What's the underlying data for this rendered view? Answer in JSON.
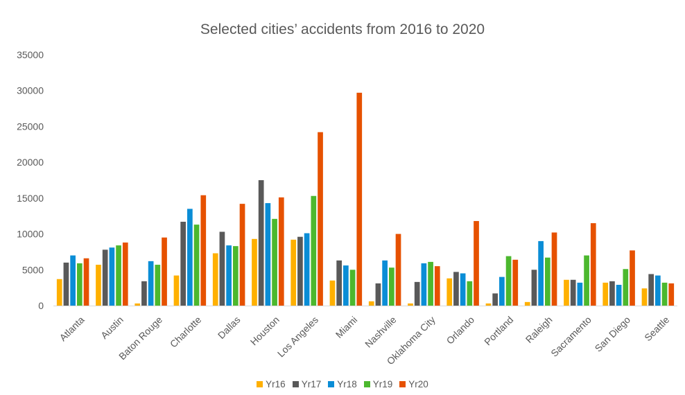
{
  "chart_data": {
    "type": "bar",
    "title": "Selected cities’ accidents from 2016 to 2020",
    "xlabel": "",
    "ylabel": "",
    "ylim": [
      0,
      35000
    ],
    "yticks": [
      0,
      5000,
      10000,
      15000,
      20000,
      25000,
      30000,
      35000
    ],
    "grid": false,
    "legend_position": "bottom",
    "categories": [
      "Atlanta",
      "Austin",
      "Baton Rouge",
      "Charlotte",
      "Dallas",
      "Houston",
      "Los Angeles",
      "Miami",
      "Nashville",
      "Oklahoma City",
      "Orlando",
      "Portland",
      "Raleigh",
      "Sacramento",
      "San Diego",
      "Seattle"
    ],
    "series": [
      {
        "name": "Yr16",
        "color": "#FFB000",
        "values": [
          3700,
          5700,
          300,
          4200,
          7300,
          9300,
          9200,
          3500,
          600,
          300,
          3800,
          300,
          500,
          3600,
          3200,
          2400
        ]
      },
      {
        "name": "Yr17",
        "color": "#595959",
        "values": [
          6000,
          7800,
          3400,
          11700,
          10300,
          17500,
          9600,
          6300,
          3100,
          3300,
          4700,
          1700,
          5000,
          3600,
          3400,
          4400
        ]
      },
      {
        "name": "Yr18",
        "color": "#0A8DD6",
        "values": [
          7000,
          8100,
          6200,
          13500,
          8400,
          14300,
          10100,
          5600,
          6300,
          5900,
          4500,
          4000,
          9000,
          3200,
          2900,
          4200
        ]
      },
      {
        "name": "Yr19",
        "color": "#4CB82E",
        "values": [
          5900,
          8400,
          5700,
          11300,
          8300,
          12100,
          15300,
          5000,
          5300,
          6100,
          3400,
          6900,
          6700,
          7000,
          5100,
          3200
        ]
      },
      {
        "name": "Yr20",
        "color": "#E65100",
        "values": [
          6600,
          8800,
          9500,
          15400,
          14200,
          15100,
          24200,
          29700,
          10000,
          5500,
          11800,
          6400,
          10200,
          11500,
          7700,
          3100
        ]
      }
    ]
  }
}
